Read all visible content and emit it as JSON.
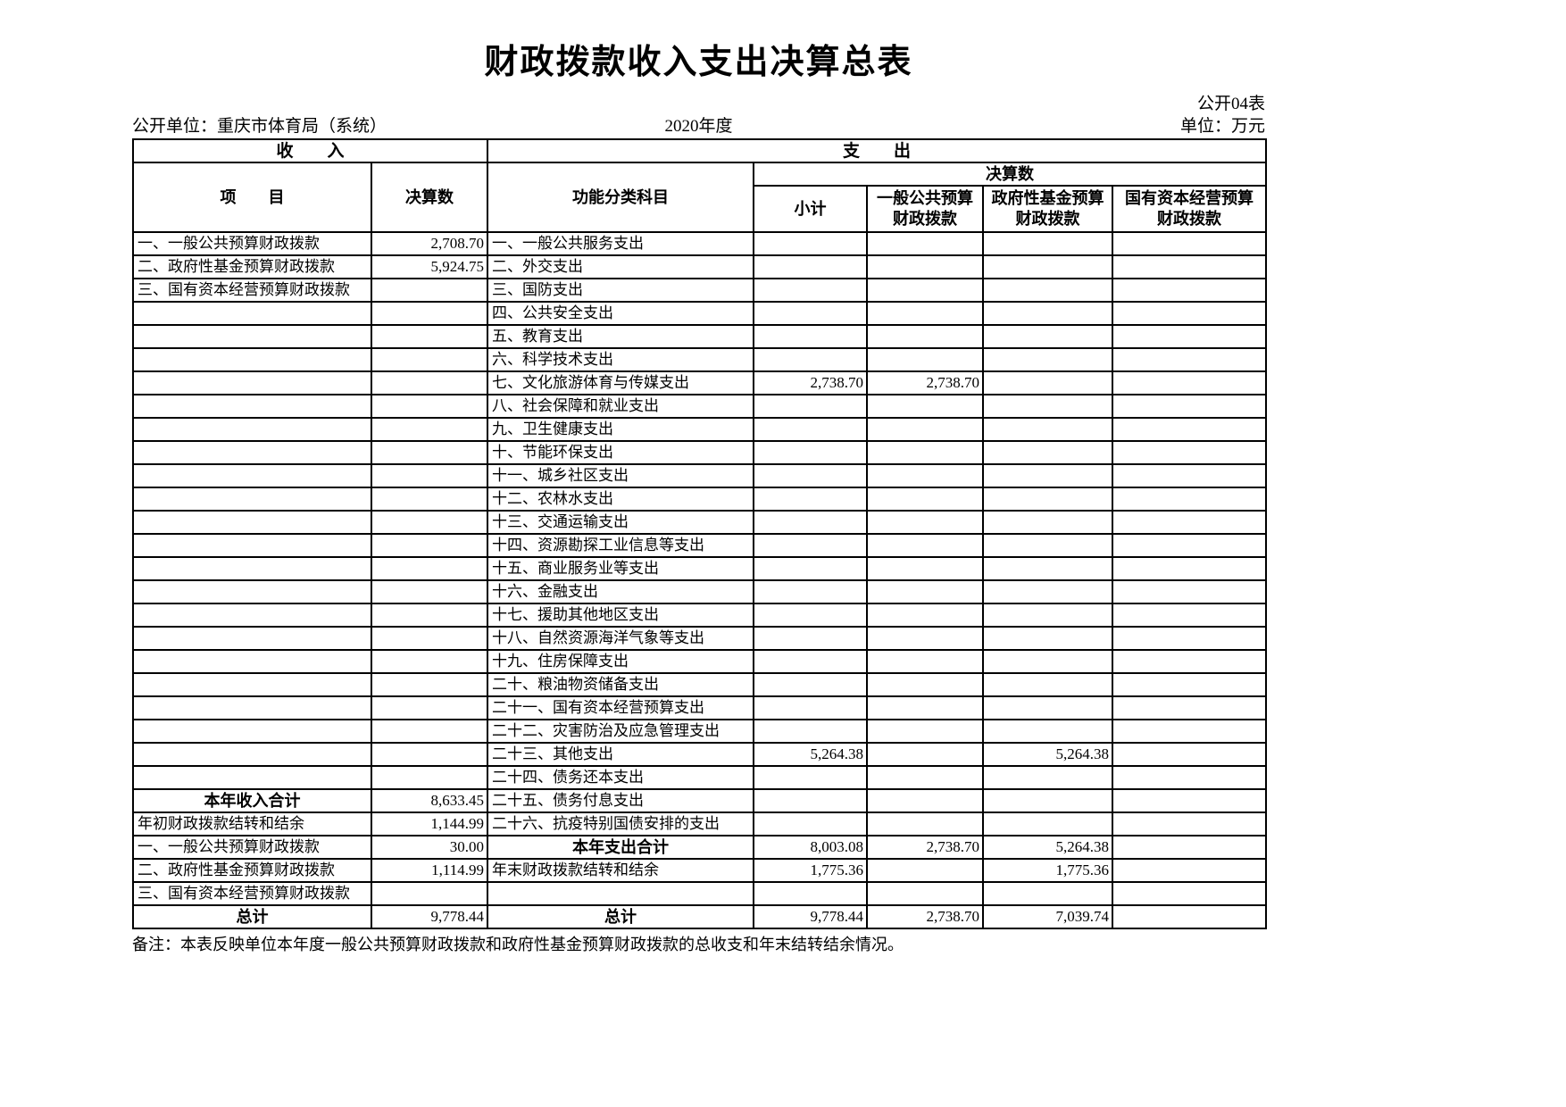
{
  "title": "财政拨款收入支出决算总表",
  "meta": {
    "form_code": "公开04表",
    "unit_name": "公开单位：重庆市体育局（系统）",
    "fiscal_year": "2020年度",
    "unit_label": "单位：万元"
  },
  "table": {
    "income_section": "收　　入",
    "expense_section": "支　　出",
    "col_item": "项　　目",
    "col_amount": "决算数",
    "col_function": "功能分类科目",
    "col_final": "决算数",
    "col_subtotal": "小计",
    "col_general_budget": "一般公共预算\n财政拨款",
    "col_gov_fund": "政府性基金预算\n财政拨款",
    "col_state_capital": "国有资本经营预算\n财政拨款",
    "rows": [
      {
        "income_item": "一、一般公共预算财政拨款",
        "income_value": "2,708.70",
        "expense_item": "一、一般公共服务支出",
        "subtotal": "",
        "general_budget": "",
        "gov_fund": "",
        "state_capital": ""
      },
      {
        "income_item": "二、政府性基金预算财政拨款",
        "income_value": "5,924.75",
        "expense_item": "二、外交支出",
        "subtotal": "",
        "general_budget": "",
        "gov_fund": "",
        "state_capital": ""
      },
      {
        "income_item": "三、国有资本经营预算财政拨款",
        "income_value": "",
        "expense_item": "三、国防支出",
        "subtotal": "",
        "general_budget": "",
        "gov_fund": "",
        "state_capital": ""
      },
      {
        "income_item": "",
        "income_value": "",
        "expense_item": "四、公共安全支出",
        "subtotal": "",
        "general_budget": "",
        "gov_fund": "",
        "state_capital": ""
      },
      {
        "income_item": "",
        "income_value": "",
        "expense_item": "五、教育支出",
        "subtotal": "",
        "general_budget": "",
        "gov_fund": "",
        "state_capital": ""
      },
      {
        "income_item": "",
        "income_value": "",
        "expense_item": "六、科学技术支出",
        "subtotal": "",
        "general_budget": "",
        "gov_fund": "",
        "state_capital": ""
      },
      {
        "income_item": "",
        "income_value": "",
        "expense_item": "七、文化旅游体育与传媒支出",
        "subtotal": "2,738.70",
        "general_budget": "2,738.70",
        "gov_fund": "",
        "state_capital": ""
      },
      {
        "income_item": "",
        "income_value": "",
        "expense_item": "八、社会保障和就业支出",
        "subtotal": "",
        "general_budget": "",
        "gov_fund": "",
        "state_capital": ""
      },
      {
        "income_item": "",
        "income_value": "",
        "expense_item": "九、卫生健康支出",
        "subtotal": "",
        "general_budget": "",
        "gov_fund": "",
        "state_capital": ""
      },
      {
        "income_item": "",
        "income_value": "",
        "expense_item": "十、节能环保支出",
        "subtotal": "",
        "general_budget": "",
        "gov_fund": "",
        "state_capital": ""
      },
      {
        "income_item": "",
        "income_value": "",
        "expense_item": "十一、城乡社区支出",
        "subtotal": "",
        "general_budget": "",
        "gov_fund": "",
        "state_capital": ""
      },
      {
        "income_item": "",
        "income_value": "",
        "expense_item": "十二、农林水支出",
        "subtotal": "",
        "general_budget": "",
        "gov_fund": "",
        "state_capital": ""
      },
      {
        "income_item": "",
        "income_value": "",
        "expense_item": "十三、交通运输支出",
        "subtotal": "",
        "general_budget": "",
        "gov_fund": "",
        "state_capital": ""
      },
      {
        "income_item": "",
        "income_value": "",
        "expense_item": "十四、资源勘探工业信息等支出",
        "subtotal": "",
        "general_budget": "",
        "gov_fund": "",
        "state_capital": ""
      },
      {
        "income_item": "",
        "income_value": "",
        "expense_item": "十五、商业服务业等支出",
        "subtotal": "",
        "general_budget": "",
        "gov_fund": "",
        "state_capital": ""
      },
      {
        "income_item": "",
        "income_value": "",
        "expense_item": "十六、金融支出",
        "subtotal": "",
        "general_budget": "",
        "gov_fund": "",
        "state_capital": ""
      },
      {
        "income_item": "",
        "income_value": "",
        "expense_item": "十七、援助其他地区支出",
        "subtotal": "",
        "general_budget": "",
        "gov_fund": "",
        "state_capital": ""
      },
      {
        "income_item": "",
        "income_value": "",
        "expense_item": "十八、自然资源海洋气象等支出",
        "subtotal": "",
        "general_budget": "",
        "gov_fund": "",
        "state_capital": ""
      },
      {
        "income_item": "",
        "income_value": "",
        "expense_item": "十九、住房保障支出",
        "subtotal": "",
        "general_budget": "",
        "gov_fund": "",
        "state_capital": ""
      },
      {
        "income_item": "",
        "income_value": "",
        "expense_item": "二十、粮油物资储备支出",
        "subtotal": "",
        "general_budget": "",
        "gov_fund": "",
        "state_capital": ""
      },
      {
        "income_item": "",
        "income_value": "",
        "expense_item": "二十一、国有资本经营预算支出",
        "subtotal": "",
        "general_budget": "",
        "gov_fund": "",
        "state_capital": ""
      },
      {
        "income_item": "",
        "income_value": "",
        "expense_item": "二十二、灾害防治及应急管理支出",
        "subtotal": "",
        "general_budget": "",
        "gov_fund": "",
        "state_capital": ""
      },
      {
        "income_item": "",
        "income_value": "",
        "expense_item": "二十三、其他支出",
        "subtotal": "5,264.38",
        "general_budget": "",
        "gov_fund": "5,264.38",
        "state_capital": ""
      },
      {
        "income_item": "",
        "income_value": "",
        "expense_item": "二十四、债务还本支出",
        "subtotal": "",
        "general_budget": "",
        "gov_fund": "",
        "state_capital": ""
      },
      {
        "income_item": "本年收入合计",
        "income_bold": true,
        "income_value": "8,633.45",
        "expense_item": "二十五、债务付息支出",
        "subtotal": "",
        "general_budget": "",
        "gov_fund": "",
        "state_capital": ""
      },
      {
        "income_item": "年初财政拨款结转和结余",
        "income_value": "1,144.99",
        "expense_item": "二十六、抗疫特别国债安排的支出",
        "subtotal": "",
        "general_budget": "",
        "gov_fund": "",
        "state_capital": ""
      },
      {
        "income_item": "一、一般公共预算财政拨款",
        "income_value": "30.00",
        "expense_item": "本年支出合计",
        "expense_bold": true,
        "subtotal": "8,003.08",
        "general_budget": "2,738.70",
        "gov_fund": "5,264.38",
        "state_capital": ""
      },
      {
        "income_item": "二、政府性基金预算财政拨款",
        "income_value": "1,114.99",
        "expense_item": "年末财政拨款结转和结余",
        "subtotal": "1,775.36",
        "general_budget": "",
        "gov_fund": "1,775.36",
        "state_capital": ""
      },
      {
        "income_item": "三、国有资本经营预算财政拨款",
        "income_value": "",
        "expense_item": "",
        "subtotal": "",
        "general_budget": "",
        "gov_fund": "",
        "state_capital": ""
      },
      {
        "income_item": "总计",
        "income_bold": true,
        "income_value": "9,778.44",
        "expense_item": "总计",
        "expense_bold": true,
        "subtotal": "9,778.44",
        "general_budget": "2,738.70",
        "gov_fund": "7,039.74",
        "state_capital": ""
      }
    ]
  },
  "footnote": "备注：本表反映单位本年度一般公共预算财政拨款和政府性基金预算财政拨款的总收支和年末结转结余情况。"
}
